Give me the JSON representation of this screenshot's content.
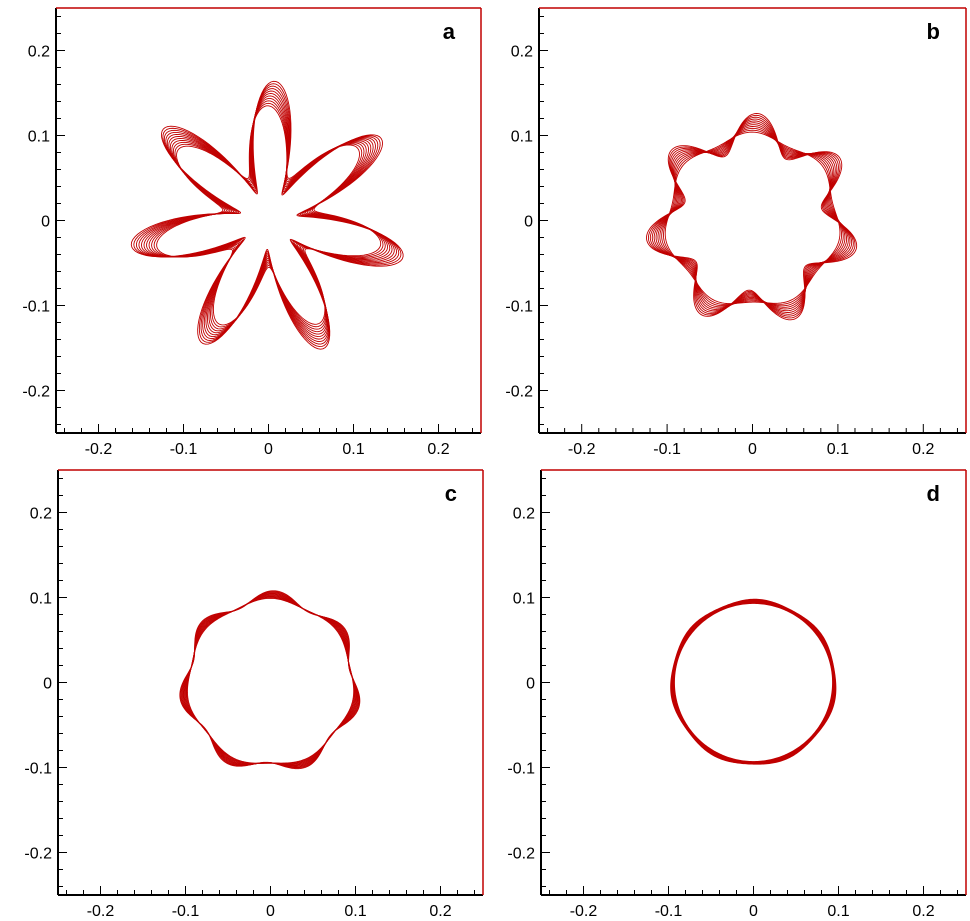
{
  "chart_data": [
    {
      "type": "line",
      "panel_label": "a",
      "xlim": [
        -0.25,
        0.25
      ],
      "ylim": [
        -0.25,
        0.25
      ],
      "x_ticks": [
        -0.2,
        -0.1,
        0,
        0.1,
        0.2
      ],
      "y_ticks": [
        -0.2,
        -0.1,
        0,
        0.1,
        0.2
      ],
      "x_tick_labels": [
        "-0.2",
        "-0.1",
        "0",
        "0.1",
        "0.2"
      ],
      "y_tick_labels": [
        "-0.2",
        "-0.1",
        "0",
        "0.1",
        "0.2"
      ],
      "series_color": "#c00000",
      "curve_family": {
        "shape": "7-lobed star contours",
        "lobes": 7,
        "mean_radius": 0.095,
        "amplitude_inner": 0.04,
        "amplitude_outer": 0.065,
        "count": 11
      }
    },
    {
      "type": "line",
      "panel_label": "b",
      "xlim": [
        -0.25,
        0.25
      ],
      "ylim": [
        -0.25,
        0.25
      ],
      "x_ticks": [
        -0.2,
        -0.1,
        0,
        0.1,
        0.2
      ],
      "y_ticks": [
        -0.2,
        -0.1,
        0,
        0.1,
        0.2
      ],
      "x_tick_labels": [
        "-0.2",
        "-0.1",
        "0",
        "0.1",
        "0.2"
      ],
      "y_tick_labels": [
        "-0.2",
        "-0.1",
        "0",
        "0.1",
        "0.2"
      ],
      "series_color": "#c00000",
      "curve_family": {
        "shape": "7-lobed wavy ring contours",
        "lobes": 7,
        "mean_radius": 0.1,
        "amplitude_inner": 0.004,
        "amplitude_outer": 0.022,
        "count": 11
      }
    },
    {
      "type": "line",
      "panel_label": "c",
      "xlim": [
        -0.25,
        0.25
      ],
      "ylim": [
        -0.25,
        0.25
      ],
      "x_ticks": [
        -0.2,
        -0.1,
        0,
        0.1,
        0.2
      ],
      "y_ticks": [
        -0.2,
        -0.1,
        0,
        0.1,
        0.2
      ],
      "x_tick_labels": [
        "-0.2",
        "-0.1",
        "0",
        "0.1",
        "0.2"
      ],
      "y_tick_labels": [
        "-0.2",
        "-0.1",
        "0",
        "0.1",
        "0.2"
      ],
      "series_color": "#c00000",
      "curve_family": {
        "shape": "near-circular ring contours",
        "lobes": 7,
        "mean_radius": 0.097,
        "amplitude_inner": 0.002,
        "amplitude_outer": 0.007,
        "count": 11
      }
    },
    {
      "type": "line",
      "panel_label": "d",
      "xlim": [
        -0.25,
        0.25
      ],
      "ylim": [
        -0.25,
        0.25
      ],
      "x_ticks": [
        -0.2,
        -0.1,
        0,
        0.1,
        0.2
      ],
      "y_ticks": [
        -0.2,
        -0.1,
        0,
        0.1,
        0.2
      ],
      "x_tick_labels": [
        "-0.2",
        "-0.1",
        "0",
        "0.1",
        "0.2"
      ],
      "y_tick_labels": [
        "-0.2",
        "-0.1",
        "0",
        "0.1",
        "0.2"
      ],
      "series_color": "#c00000",
      "curve_family": {
        "shape": "circular ring contours",
        "lobes": 7,
        "mean_radius": 0.093,
        "amplitude_inner": 0.0,
        "amplitude_outer": 0.001,
        "count": 11
      }
    }
  ]
}
